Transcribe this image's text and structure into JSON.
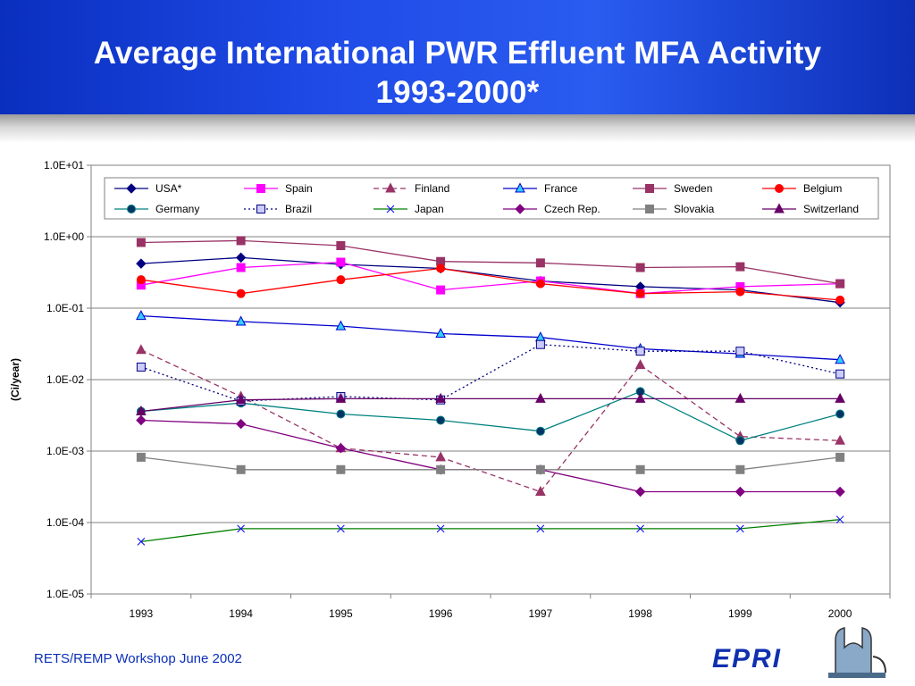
{
  "slide": {
    "title_line1": "Average International PWR Effluent MFA Activity",
    "title_line2": "1993-2000*",
    "footer": "RETS/REMP Workshop June 2002",
    "logo_text": "EPRI",
    "header_color": "#1f4ae6",
    "footer_color": "#0b2fb8"
  },
  "chart_data": {
    "type": "line",
    "title": "",
    "xlabel": "",
    "ylabel": "(Ci/year)",
    "yscale": "log",
    "ylim": [
      1e-05,
      10
    ],
    "y_tick_labels": [
      "1.0E-05",
      "1.0E-04",
      "1.0E-03",
      "1.0E-02",
      "1.0E-01",
      "1.0E+00",
      "1.0E+01"
    ],
    "categories": [
      "1993",
      "1994",
      "1995",
      "1996",
      "1997",
      "1998",
      "1999",
      "2000"
    ],
    "grid": "horizontal",
    "legend_position": "top",
    "series": [
      {
        "name": "USA*",
        "color": "#000080",
        "marker": "diamond",
        "dash": "solid",
        "values": [
          0.42,
          0.51,
          0.41,
          0.36,
          0.24,
          0.2,
          0.18,
          0.12
        ]
      },
      {
        "name": "Spain",
        "color": "#ff00ff",
        "marker": "square",
        "dash": "solid",
        "values": [
          0.21,
          0.37,
          0.44,
          0.18,
          0.24,
          0.16,
          0.2,
          0.22
        ]
      },
      {
        "name": "Finland",
        "color": "#993366",
        "marker": "triangle",
        "dash": "dashed",
        "values": [
          0.026,
          0.0058,
          0.0011,
          0.00082,
          0.00027,
          0.016,
          0.0016,
          0.0014
        ]
      },
      {
        "name": "France",
        "color": "#0000cc",
        "marker": "triangle-open",
        "fill": "#33ccff",
        "dash": "solid",
        "values": [
          0.078,
          0.065,
          0.056,
          0.044,
          0.039,
          0.027,
          0.023,
          0.019
        ]
      },
      {
        "name": "Sweden",
        "color": "#993366",
        "marker": "square",
        "fill": "#993366",
        "dash": "solid",
        "values": [
          0.83,
          0.88,
          0.75,
          0.45,
          0.43,
          0.37,
          0.38,
          0.22
        ]
      },
      {
        "name": "Belgium",
        "color": "#ff0000",
        "marker": "circle",
        "dash": "solid",
        "values": [
          0.25,
          0.16,
          0.25,
          0.36,
          0.22,
          0.16,
          0.17,
          0.13
        ]
      },
      {
        "name": "Germany",
        "color": "#008080",
        "marker": "circle",
        "fill": "#003366",
        "dash": "solid",
        "values": [
          0.0036,
          0.0047,
          0.0033,
          0.0027,
          0.0019,
          0.0068,
          0.0014,
          0.0033
        ]
      },
      {
        "name": "Brazil",
        "color": "#000080",
        "marker": "square-open",
        "fill": "#ccccff",
        "dash": "dotted",
        "values": [
          0.015,
          0.005,
          0.0058,
          0.0052,
          0.031,
          0.025,
          0.025,
          0.012
        ]
      },
      {
        "name": "Japan",
        "color": "#008000",
        "marker": "x",
        "markerColor": "#0000ff",
        "dash": "solid",
        "values": [
          5.4e-05,
          8.2e-05,
          8.2e-05,
          8.2e-05,
          8.2e-05,
          8.2e-05,
          8.2e-05,
          0.00011
        ]
      },
      {
        "name": "Czech Rep.",
        "color": "#800080",
        "marker": "diamond",
        "dash": "solid",
        "values": [
          0.0027,
          0.0024,
          0.0011,
          0.00055,
          0.00055,
          0.00027,
          0.00027,
          0.00027
        ]
      },
      {
        "name": "Slovakia",
        "color": "#808080",
        "marker": "square",
        "dash": "solid",
        "values": [
          0.00082,
          0.00055,
          0.00055,
          0.00055,
          0.00055,
          0.00055,
          0.00055,
          0.00082
        ]
      },
      {
        "name": "Switzerland",
        "color": "#660066",
        "marker": "triangle",
        "dash": "solid",
        "values": [
          0.0036,
          0.0052,
          0.0054,
          0.0054,
          0.0054,
          0.0054,
          0.0054,
          0.0054
        ]
      }
    ]
  }
}
